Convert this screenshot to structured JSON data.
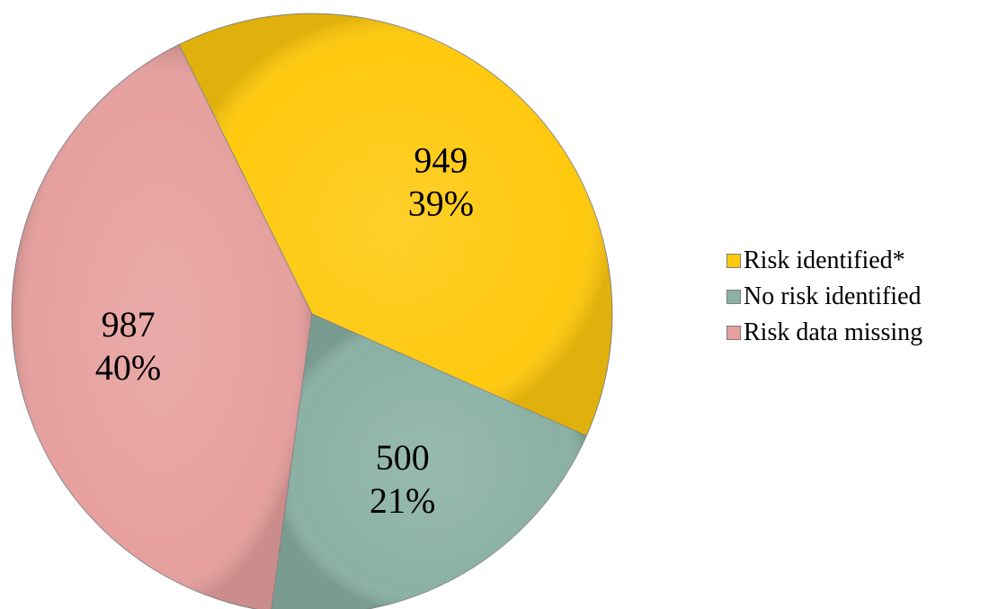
{
  "chart_data": {
    "type": "pie",
    "title": "",
    "slices": [
      {
        "name": "Risk identified*",
        "value": 949,
        "percent": "39%",
        "color": "#FFC90E"
      },
      {
        "name": "No risk identified",
        "value": 500,
        "percent": "21%",
        "color": "#8AB1A4"
      },
      {
        "name": "Risk data missing",
        "value": 987,
        "percent": "40%",
        "color": "#E6A09E"
      }
    ],
    "legend_position": "right"
  },
  "legend": {
    "items": [
      {
        "label": "Risk identified*",
        "color": "#FFC90E"
      },
      {
        "label": "No risk identified",
        "color": "#8AB1A4"
      },
      {
        "label": "Risk data missing",
        "color": "#E6A09E"
      }
    ]
  }
}
